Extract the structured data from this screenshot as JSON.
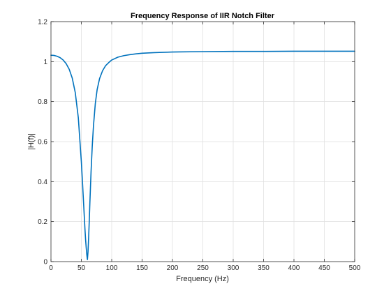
{
  "chart_data": {
    "type": "line",
    "title": "Frequency Response of IIR Notch Filter",
    "xlabel": "Frequency (Hz)",
    "ylabel": "|H(f)|",
    "xlim": [
      0,
      500
    ],
    "ylim": [
      0,
      1.2
    ],
    "xticks": [
      "0",
      "50",
      "100",
      "150",
      "200",
      "250",
      "300",
      "350",
      "400",
      "450",
      "500"
    ],
    "yticks": [
      "0",
      "0.2",
      "0.4",
      "0.6",
      "0.8",
      "1",
      "1.2"
    ],
    "grid": true,
    "legend": "none",
    "colors": {
      "line": "#0072BD",
      "grid": "#dfdfdf",
      "axes": "#262626"
    },
    "series": [
      {
        "x": [
          0,
          5,
          10,
          15,
          20,
          25,
          30,
          35,
          40,
          45,
          50,
          52,
          54,
          56,
          57,
          58,
          59,
          60,
          61,
          62,
          63,
          64,
          66,
          68,
          70,
          73,
          76,
          80,
          85,
          90,
          95,
          100,
          110,
          120,
          130,
          140,
          150,
          170,
          200,
          250,
          300,
          350,
          400,
          450,
          500
        ],
        "y": [
          1.032,
          1.031,
          1.027,
          1.02,
          1.008,
          0.99,
          0.962,
          0.918,
          0.845,
          0.72,
          0.5,
          0.39,
          0.275,
          0.16,
          0.11,
          0.07,
          0.035,
          0.01,
          0.05,
          0.12,
          0.2,
          0.29,
          0.45,
          0.58,
          0.68,
          0.79,
          0.86,
          0.915,
          0.955,
          0.98,
          0.995,
          1.008,
          1.022,
          1.03,
          1.035,
          1.039,
          1.042,
          1.045,
          1.048,
          1.05,
          1.051,
          1.051,
          1.052,
          1.052,
          1.052
        ]
      }
    ]
  }
}
